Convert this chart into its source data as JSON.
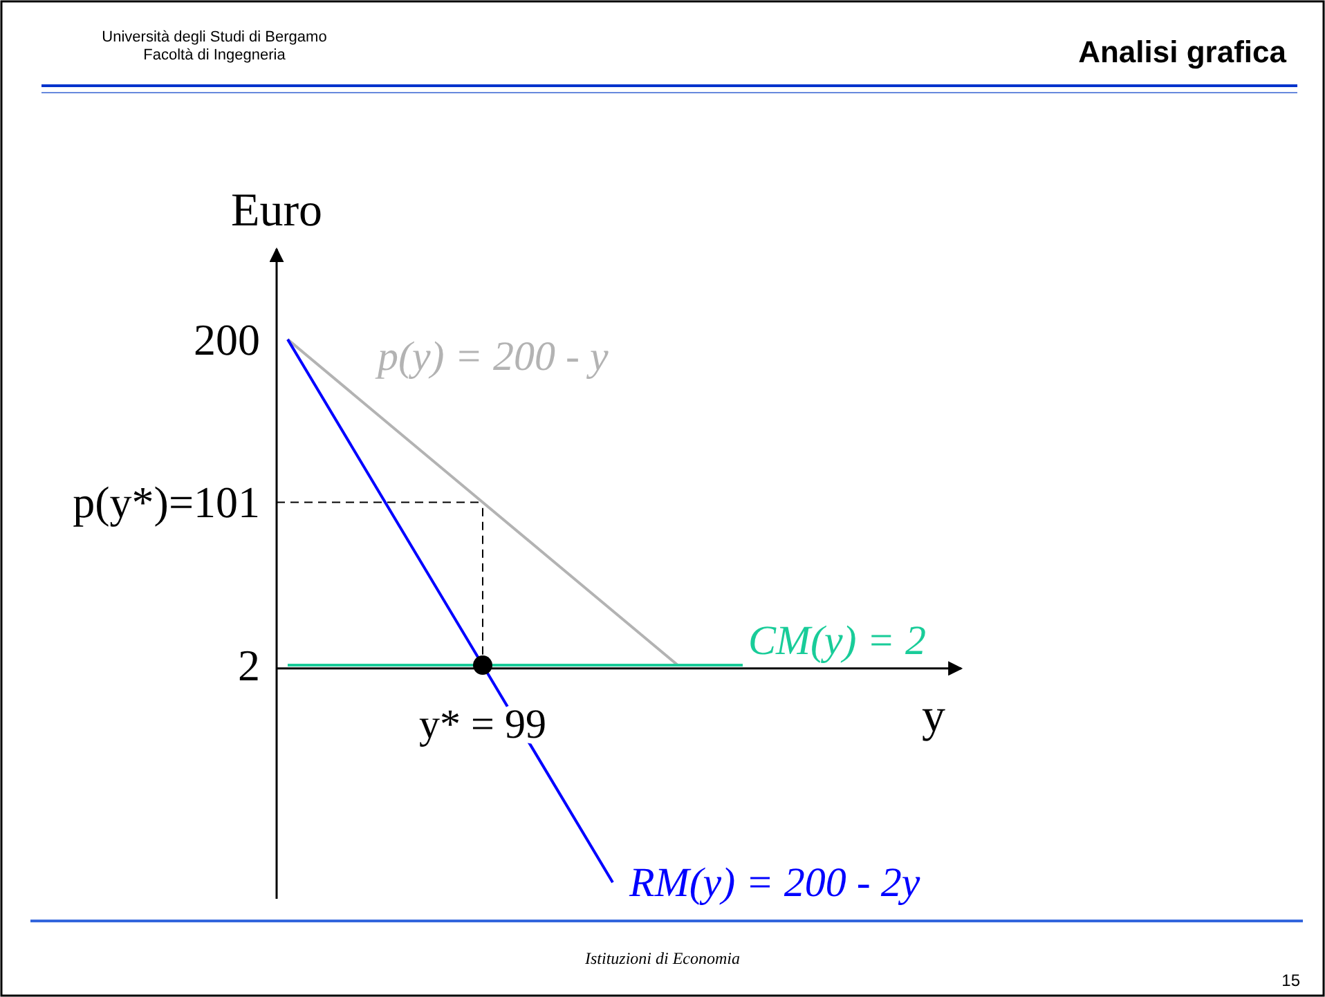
{
  "chart_data": {
    "type": "line",
    "title": "Analisi grafica",
    "xlabel": "y",
    "ylabel": "Euro",
    "annotations": [
      "Università degli Studi di Bergamo\nFacoltà di Ingegneria",
      "Istituzioni di Economia",
      "15"
    ],
    "categories": [
      null,
      null,
      null,
      "y* = 99",
      null,
      null,
      null,
      null,
      null,
      null
    ],
    "ylim": [
      -140,
      255
    ],
    "yticks": [
      {
        "value": 2,
        "label": "2"
      },
      {
        "value": 101,
        "label": "p(y*)=101"
      },
      {
        "value": 200,
        "label": "200"
      }
    ],
    "series": [
      {
        "name": "p(y) = 200 - y",
        "color": "#b3b3b3",
        "values": [
          200,
          167,
          134,
          101,
          68,
          35,
          2,
          null,
          null,
          null
        ]
      },
      {
        "name": "RM(y) = 200 - 2y",
        "color": "#0000ff",
        "values": [
          200,
          134,
          68,
          2,
          -64,
          -130,
          null,
          null,
          null,
          null
        ]
      },
      {
        "name": "CM(y) = 2",
        "color": "#19cc99",
        "values": [
          2,
          2,
          2,
          2,
          2,
          2,
          2,
          2,
          null,
          null
        ]
      },
      {
        "type": "scatter",
        "color": "#000000",
        "x": [
          "y* = 99"
        ],
        "values": [
          2
        ],
        "marker": "circle"
      }
    ],
    "ref_lines": [
      {
        "axis": "x",
        "value": "y* = 99",
        "color": "#000000",
        "line_style": "dashed"
      },
      {
        "axis": "y",
        "value": 101,
        "color": "#000000",
        "line_style": "dashed"
      }
    ],
    "grid": false,
    "legend": false
  }
}
